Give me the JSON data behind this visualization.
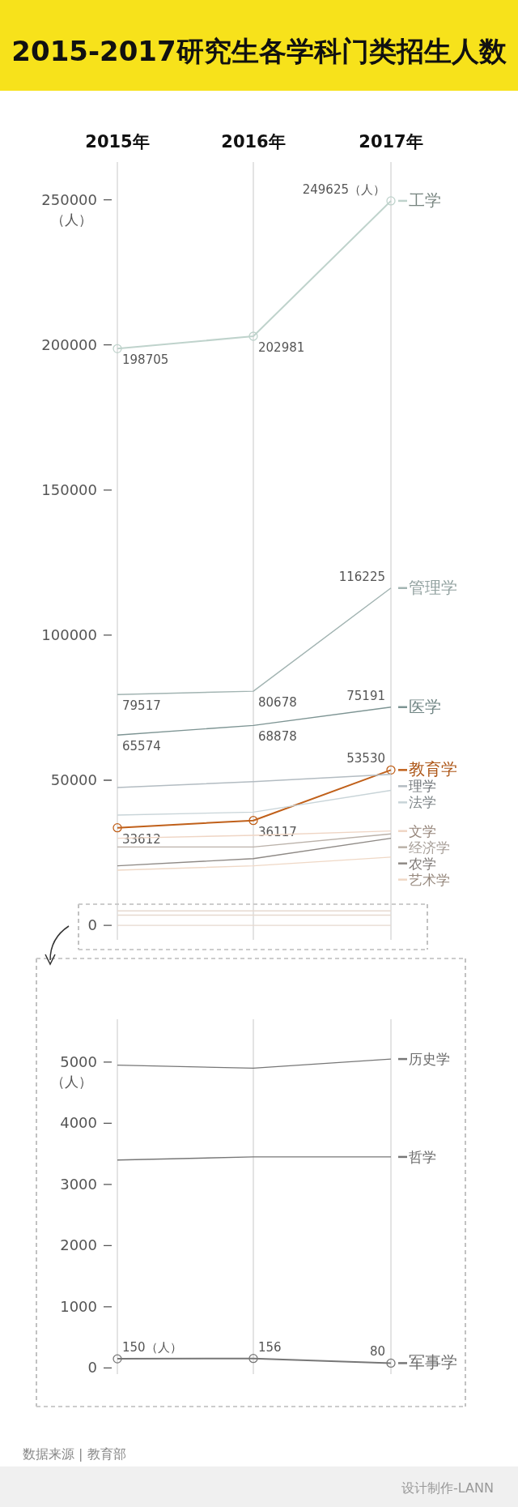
{
  "chart_data": [
    {
      "type": "line",
      "title": "2015-2017研究生各学科门类招生人数",
      "categories": [
        "2015年",
        "2016年",
        "2017年"
      ],
      "ylabel": "（人）",
      "ylim": [
        -5000,
        263000
      ],
      "yticks": [
        0,
        50000,
        100000,
        150000,
        200000,
        250000
      ],
      "grid": "x",
      "legend": "right",
      "series": [
        {
          "name": "工学",
          "color": "#bfd3cc",
          "marker": "circle",
          "values": [
            198705,
            202981,
            249625
          ],
          "value_labels": [
            "198705",
            "202981",
            "249625（人）"
          ]
        },
        {
          "name": "管理学",
          "color": "#a2b4b2",
          "values": [
            79517,
            80678,
            116225
          ],
          "value_labels": [
            "79517",
            "80678",
            "116225"
          ]
        },
        {
          "name": "医学",
          "color": "#7d9493",
          "values": [
            65574,
            68878,
            75191
          ],
          "value_labels": [
            "65574",
            "68878",
            "75191"
          ]
        },
        {
          "name": "教育学",
          "color": "#c0601a",
          "marker": "circle",
          "values": [
            33612,
            36117,
            53530
          ],
          "value_labels": [
            "33612",
            "36117",
            "53530"
          ]
        },
        {
          "name": "理学",
          "color": "#b3bcc2",
          "values": [
            47500,
            49500,
            52000
          ]
        },
        {
          "name": "法学",
          "color": "#c8d4d8",
          "values": [
            38000,
            39000,
            46500
          ]
        },
        {
          "name": "文学",
          "color": "#efd5c4",
          "values": [
            30000,
            31000,
            32500
          ]
        },
        {
          "name": "经济学",
          "color": "#bab1a9",
          "values": [
            27000,
            27000,
            31500
          ]
        },
        {
          "name": "农学",
          "color": "#8e8985",
          "values": [
            20500,
            23000,
            30000
          ]
        },
        {
          "name": "艺术学",
          "color": "#efd8c6",
          "values": [
            19000,
            20500,
            23500
          ]
        },
        {
          "color": "#e6d9cf",
          "values": [
            5000,
            5000,
            5000
          ]
        },
        {
          "color": "#e6d9cf",
          "values": [
            3500,
            3500,
            3500
          ]
        },
        {
          "color": "#e6d9cf",
          "values": [
            0,
            0,
            0
          ]
        }
      ]
    },
    {
      "type": "line",
      "categories": [
        null,
        null,
        null
      ],
      "ylabel": "（人）",
      "ylim": [
        -100,
        5700
      ],
      "yticks": [
        0,
        1000,
        2000,
        3000,
        4000,
        5000
      ],
      "grid": "x",
      "legend": "right",
      "annotations": [
        "数据来源 | 教育部",
        "设计制作-LANN"
      ],
      "series": [
        {
          "name": "历史学",
          "color": "#777777",
          "values": [
            4950,
            4900,
            5050
          ]
        },
        {
          "name": "哲学",
          "color": "#777777",
          "values": [
            3400,
            3450,
            3450
          ]
        },
        {
          "name": "军事学",
          "color": "#777777",
          "marker": "circle",
          "values": [
            150,
            156,
            80
          ],
          "value_labels": [
            "150（人）",
            "156",
            "80"
          ]
        }
      ]
    }
  ]
}
